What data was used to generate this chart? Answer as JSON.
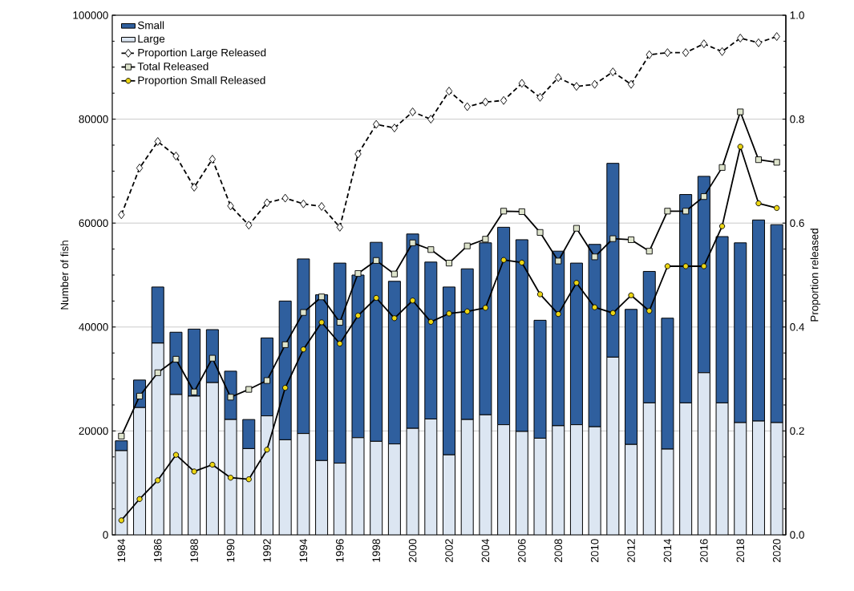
{
  "chart_data": {
    "type": "bar",
    "stacked": true,
    "categories": [
      "1984",
      null,
      "1986",
      null,
      "1988",
      null,
      "1990",
      null,
      "1992",
      null,
      "1994",
      null,
      "1996",
      null,
      "1998",
      null,
      "2000",
      null,
      "2002",
      null,
      "2004",
      null,
      "2006",
      null,
      "2008",
      null,
      "2010",
      null,
      "2012",
      null,
      "2014",
      null,
      "2016",
      null,
      "2018",
      null,
      "2020"
    ],
    "series": [
      {
        "name": "Large",
        "color": "#dce6f2",
        "values": [
          16200,
          24500,
          36900,
          27000,
          26700,
          29300,
          22200,
          16600,
          22900,
          18300,
          19500,
          14300,
          13800,
          18700,
          18000,
          17500,
          20500,
          22300,
          15400,
          22200,
          23100,
          21200,
          19900,
          18600,
          21000,
          21200,
          20800,
          34200,
          17400,
          25400,
          16500,
          25400,
          31200,
          25400,
          21600,
          21900,
          21600
        ]
      },
      {
        "name": "Small",
        "color": "#2f5f9e",
        "values": [
          1900,
          5300,
          10800,
          12000,
          12900,
          10200,
          9300,
          5600,
          15000,
          26700,
          33600,
          31900,
          38500,
          31300,
          38300,
          31300,
          37400,
          30200,
          32300,
          29000,
          33100,
          38000,
          36900,
          22700,
          33600,
          31100,
          35100,
          37300,
          26000,
          25300,
          25200,
          40100,
          37800,
          32000,
          34600,
          38700,
          38100
        ]
      },
      {
        "name": "Proportion Large Released",
        "type": "line",
        "axis": "y2",
        "color": "#000000",
        "marker": "diamond",
        "line_style": "dashed",
        "values": [
          0.616,
          0.706,
          0.757,
          0.729,
          0.669,
          0.723,
          0.633,
          0.596,
          0.639,
          0.648,
          0.637,
          0.632,
          0.592,
          0.733,
          0.79,
          0.783,
          0.814,
          0.8,
          0.854,
          0.824,
          0.833,
          0.836,
          0.869,
          0.842,
          0.88,
          0.863,
          0.867,
          0.891,
          0.867,
          0.924,
          0.928,
          0.928,
          0.945,
          0.93,
          0.956,
          0.947,
          0.959
        ]
      },
      {
        "name": "Total Released",
        "type": "line",
        "axis": "y",
        "color": "#000000",
        "marker": "square",
        "line_style": "solid",
        "values": [
          19000,
          26700,
          31200,
          33800,
          27500,
          34000,
          26500,
          28000,
          29700,
          36600,
          42800,
          45800,
          40900,
          50300,
          52800,
          50200,
          56200,
          54900,
          52300,
          55600,
          56900,
          62300,
          62200,
          58200,
          52700,
          59000,
          53500,
          57000,
          56800,
          54600,
          62300,
          62300,
          65100,
          70700,
          81400,
          72200,
          71700
        ]
      },
      {
        "name": "Proportion Small Released",
        "type": "line",
        "axis": "y2",
        "color": "#000000",
        "marker": "circle",
        "line_style": "solid",
        "values": [
          0.028,
          0.069,
          0.105,
          0.154,
          0.122,
          0.135,
          0.11,
          0.107,
          0.164,
          0.283,
          0.357,
          0.409,
          0.368,
          0.422,
          0.456,
          0.417,
          0.451,
          0.41,
          0.426,
          0.43,
          0.437,
          0.529,
          0.524,
          0.463,
          0.425,
          0.485,
          0.438,
          0.427,
          0.461,
          0.431,
          0.517,
          0.517,
          0.517,
          0.594,
          0.747,
          0.638,
          0.629
        ]
      }
    ],
    "ylabel": "Number of fish",
    "y2label": "Proportion released",
    "ylim": [
      0,
      100000
    ],
    "yticks": [
      0,
      20000,
      40000,
      60000,
      80000,
      100000
    ],
    "y2lim": [
      0,
      1
    ],
    "y2ticks": [
      {
        "value": 0,
        "label": "0.0"
      },
      {
        "value": 0.2,
        "label": "0.2"
      },
      {
        "value": 0.4,
        "label": "0.4"
      },
      {
        "value": 0.6,
        "label": "0.6"
      },
      {
        "value": 0.8,
        "label": "0.8"
      },
      {
        "value": 1,
        "label": "1.0"
      }
    ],
    "grid": "y",
    "legend": "top left"
  }
}
